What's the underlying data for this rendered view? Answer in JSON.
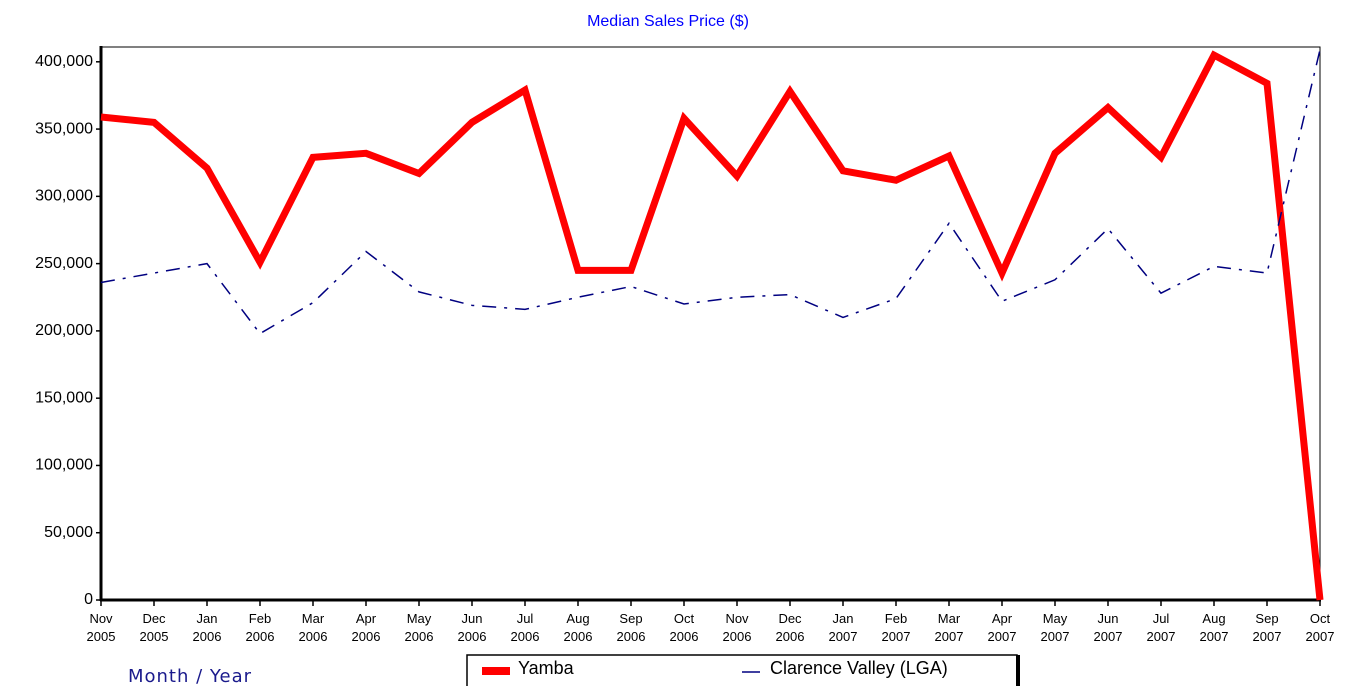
{
  "chart_data": {
    "type": "line",
    "title": "Median Sales Price ($)",
    "x_label": "Month / Year",
    "categories": [
      "Nov 2005",
      "Dec 2005",
      "Jan 2006",
      "Feb 2006",
      "Mar 2006",
      "Apr 2006",
      "May 2006",
      "Jun 2006",
      "Jul 2006",
      "Aug 2006",
      "Sep 2006",
      "Oct 2006",
      "Nov 2006",
      "Dec 2006",
      "Jan 2007",
      "Feb 2007",
      "Mar 2007",
      "Apr 2007",
      "May 2007",
      "Jun 2007",
      "Jul 2007",
      "Aug 2007",
      "Sep 2007",
      "Oct 2007"
    ],
    "series": [
      {
        "name": "Yamba",
        "color": "#ff0000",
        "values": [
          359000,
          355000,
          321000,
          251000,
          329000,
          332000,
          317000,
          355000,
          379000,
          245000,
          245000,
          358000,
          315000,
          378000,
          319000,
          312000,
          330000,
          243000,
          332000,
          366000,
          329000,
          405000,
          384000,
          0
        ]
      },
      {
        "name": "Clarence Valley (LGA)",
        "color": "#000080",
        "values": [
          236000,
          243000,
          250000,
          198000,
          221000,
          259000,
          229000,
          219000,
          216000,
          225000,
          233000,
          220000,
          225000,
          227000,
          210000,
          224000,
          280000,
          222000,
          238000,
          276000,
          228000,
          248000,
          243000,
          409000
        ]
      }
    ],
    "ylim": [
      0,
      411000
    ],
    "yticks": [
      0,
      {
        "value": 50000,
        "label": "50,000"
      },
      {
        "value": 100000,
        "label": "100,000"
      },
      {
        "value": 150000,
        "label": "150,000"
      },
      {
        "value": 200000,
        "label": "200,000"
      },
      {
        "value": 250000,
        "label": "250,000"
      },
      {
        "value": 300000,
        "label": "300,000"
      },
      {
        "value": 350000,
        "label": "350,000"
      },
      {
        "value": 400000,
        "label": "400,000"
      }
    ],
    "grid": false,
    "legend": "bottom"
  }
}
